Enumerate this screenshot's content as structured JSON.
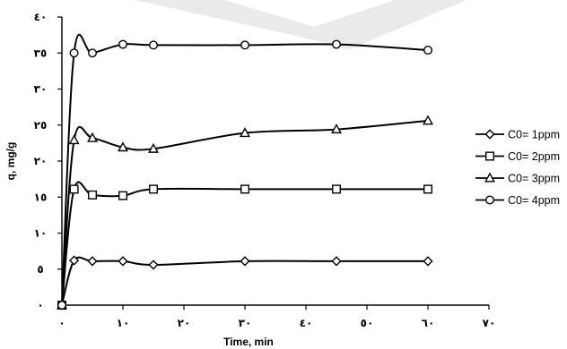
{
  "chart_data": {
    "type": "line",
    "title": "",
    "xlabel": "Time, min",
    "ylabel": "q, mg/g",
    "xlim": [
      0,
      70
    ],
    "ylim": [
      0,
      40
    ],
    "x_ticks": [
      0,
      10,
      20,
      30,
      40,
      50,
      60,
      70
    ],
    "x_tick_labels": [
      "٠",
      "١٠",
      "٢٠",
      "٣٠",
      "٤٠",
      "٥٠",
      "٦٠",
      "٧٠"
    ],
    "y_ticks": [
      0,
      5,
      10,
      15,
      20,
      25,
      30,
      35,
      40
    ],
    "y_tick_labels": [
      "٠",
      "٥",
      "١٠",
      "١٥",
      "٢٠",
      "٢٥",
      "٣٠",
      "٣٥",
      "٤٠"
    ],
    "grid": false,
    "legend_position": "right",
    "series": [
      {
        "name": "C0= 1ppm",
        "marker": "diamond",
        "color": "#000000",
        "x": [
          0,
          2,
          5,
          10,
          15,
          30,
          45,
          60
        ],
        "y": [
          0,
          6.2,
          6.1,
          6.1,
          5.6,
          6.1,
          6.1,
          6.1
        ]
      },
      {
        "name": "C0= 2ppm",
        "marker": "square",
        "color": "#000000",
        "x": [
          0,
          2,
          5,
          10,
          15,
          30,
          45,
          60
        ],
        "y": [
          0,
          16.1,
          15.3,
          15.2,
          16.1,
          16.1,
          16.1,
          16.1
        ]
      },
      {
        "name": "C0= 3ppm",
        "marker": "triangle",
        "color": "#000000",
        "x": [
          0,
          2,
          5,
          10,
          15,
          30,
          45,
          60
        ],
        "y": [
          0,
          22.9,
          23.2,
          21.9,
          21.7,
          23.9,
          24.4,
          25.6
        ]
      },
      {
        "name": "C0= 4ppm",
        "marker": "circle",
        "color": "#000000",
        "x": [
          0,
          2,
          5,
          10,
          15,
          30,
          45,
          60
        ],
        "y": [
          0,
          35.0,
          35.0,
          36.2,
          36.1,
          36.1,
          36.2,
          35.4
        ]
      }
    ]
  }
}
